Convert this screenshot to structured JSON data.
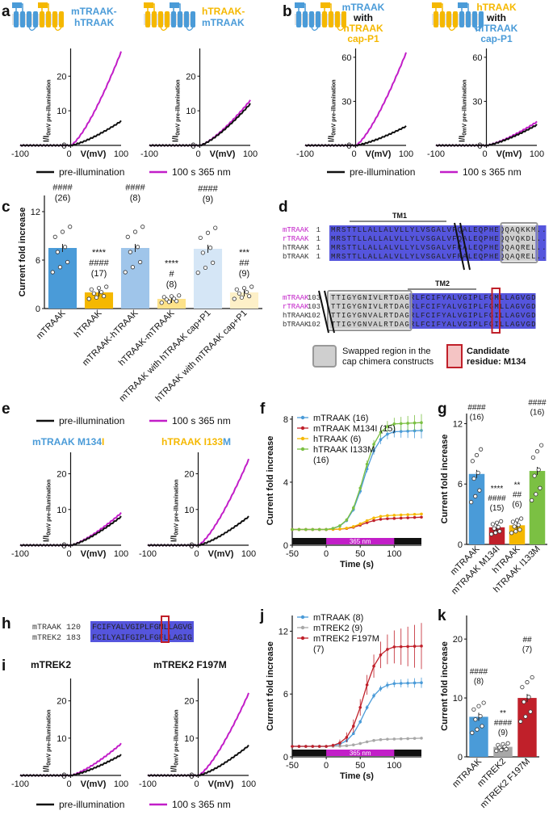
{
  "colors": {
    "mTRAAK": "#4a9bd8",
    "hTRAAK": "#f5b800",
    "illum": "#c21ec8",
    "black": "#111111",
    "mM134I": "#c0202a",
    "hI133M": "#7bc043",
    "mTREK2": "#a8a8a8",
    "F197M": "#c0202a",
    "align_blue": "#5555dd",
    "align_gray": "#cfcfcf",
    "candidate": "#c0202a",
    "magenta_text": "#c21ec8"
  },
  "panel_letters": {
    "a": "a",
    "b": "b",
    "c": "c",
    "d": "d",
    "e": "e",
    "f": "f",
    "g": "g",
    "h": "h",
    "i": "i",
    "j": "j",
    "k": "k"
  },
  "iv": {
    "ylabel_main": "I/I",
    "ylabel_sub": "0mV pre-illumination",
    "xlabel": "V(mV)",
    "xticks": [
      "-100",
      "0",
      "100"
    ],
    "ab_legend": {
      "pre": "pre-illumination",
      "uv": "100 s 365 nm"
    },
    "e_legend": {
      "pre": "pre-illumination",
      "uv": "100 s 365 nm"
    },
    "i_legend": {
      "pre": "pre-illumination",
      "uv": "100 s 365 nm"
    },
    "a1": {
      "title_l1": "mTRAAK-",
      "title_l2": "hTRAAK",
      "yticks": [
        "0",
        "10",
        "20"
      ],
      "ymax": 28,
      "pre_end": 7,
      "uv_end": 27
    },
    "a2": {
      "title_l1": "hTRAAK-",
      "title_l2": "mTRAAK",
      "yticks": [
        "0",
        "10",
        "20"
      ],
      "ymax": 28,
      "pre_end": 12,
      "uv_end": 13
    },
    "b1": {
      "title_l1": "mTRAAK",
      "title_l2": "with",
      "title_l3": "hTRAAK",
      "title_l4": "cap-P1",
      "yticks": [
        "0",
        "30",
        "60"
      ],
      "ymax": 66,
      "pre_end": 13,
      "uv_end": 63
    },
    "b2": {
      "title_l1": "hTRAAK",
      "title_l2": "with",
      "title_l3": "mTRAAK",
      "title_l4": "cap-P1",
      "yticks": [
        "0",
        "30",
        "60"
      ],
      "ymax": 66,
      "pre_end": 14,
      "uv_end": 16
    },
    "e1": {
      "title_a": "mTRAAK M134",
      "title_b": "I",
      "yticks": [
        "0",
        "10",
        "20"
      ],
      "ymax": 26,
      "pre_end": 8,
      "uv_end": 9
    },
    "e2": {
      "title_a": "hTRAAK I133",
      "title_b": "M",
      "yticks": [
        "0",
        "10",
        "20"
      ],
      "ymax": 26,
      "pre_end": 8,
      "uv_end": 24
    },
    "i1": {
      "title": "mTREK2",
      "yticks": [
        "0",
        "10",
        "20"
      ],
      "ymax": 26,
      "pre_end": 5.5,
      "uv_end": 8.5
    },
    "i2": {
      "title": "mTREK2 F197M",
      "yticks": [
        "0",
        "10",
        "20"
      ],
      "ymax": 26,
      "pre_end": 8,
      "uv_end": 22
    }
  },
  "panel_c": {
    "ylabel": "Current fold increase",
    "yticks": [
      "0",
      "6",
      "12"
    ],
    "ymax": 14,
    "bars": [
      {
        "label": "mTRAAK",
        "value": 7.5,
        "color": "#4a9bd8",
        "ann": [
          "####",
          "(26)"
        ]
      },
      {
        "label": "hTRAAK",
        "value": 2.0,
        "color": "#f5b800",
        "ann": [
          "****",
          "####",
          "(17)"
        ]
      },
      {
        "label": "mTRAAK-hTRAAK",
        "value": 7.5,
        "color": "#9fc5ea",
        "ann": [
          "####",
          "(8)"
        ]
      },
      {
        "label": "hTRAAK-mTRAAK",
        "value": 1.2,
        "color": "#fde28a",
        "ann": [
          "****",
          "#",
          "(8)"
        ]
      },
      {
        "label": "mTRAAK with hTRAAK cap+P1",
        "value": 7.4,
        "color": "#d5e6f6",
        "ann": [
          "####",
          "(9)"
        ]
      },
      {
        "label": "hTRAAK with mTRAAK cap+P1",
        "value": 2.0,
        "color": "#fdf0c8",
        "ann": [
          "***",
          "##",
          "(9)"
        ]
      }
    ]
  },
  "panel_d": {
    "tm1": "TM1",
    "tm2": "TM2",
    "block1": [
      {
        "name": "mTRAAK",
        "num": "1",
        "seq": "MRSTTLLALLALVLLYLVSGALVFQALEQPHEQQAQKKM..",
        "magenta": true
      },
      {
        "name": "rTRAAK",
        "num": "1",
        "seq": "MRSTTLLALLALVLLYLVSGALVFQALEQPHEQQVQKDL..",
        "magenta": true
      },
      {
        "name": "hTRAAK",
        "num": "1",
        "seq": "MRSTTLLALLALVLLYLVSGALVFRALEQPHEQQAQREL..",
        "magenta": false
      },
      {
        "name": "bTRAAK",
        "num": "1",
        "seq": "MRSTTLLALLALVLLYLVSGALVFRALEQPHEQQAQREL..",
        "magenta": false
      }
    ],
    "block2": [
      {
        "name": "mTRAAK",
        "num": "103",
        "seq": "TTIGYGNIVLRTDAGRLFCIFYALVGIPLFGMLLAGVGD",
        "magenta": true
      },
      {
        "name": "rTRAAK",
        "num": "103",
        "seq": "TTIGYGNIVLRTDAGRLFCIFYALVGIPLFGMLLAGVGD",
        "magenta": true
      },
      {
        "name": "hTRAAK",
        "num": "102",
        "seq": "TTIGYGNVALRTDAGRLFCIFYALVGIPLFGILLAGVGD",
        "magenta": false
      },
      {
        "name": "bTRAAK",
        "num": "102",
        "seq": "TTIGYGNVALRTDAGRLFCIFYALVGIPLFGILLAGVGD",
        "magenta": false
      }
    ],
    "legend_swap_l1": "Swapped region in the",
    "legend_swap_l2": "cap chimera constructs",
    "legend_cand_l1": "Candidate",
    "legend_cand_l2": "residue: M134"
  },
  "panel_f": {
    "ylabel": "Current fold increase",
    "xlabel": "Time (s)",
    "xticks": [
      "-50",
      "0",
      "50",
      "100"
    ],
    "yticks": [
      "0",
      "4",
      "8"
    ],
    "xlim": [
      -50,
      140
    ],
    "ylim": [
      0,
      8.2
    ],
    "stim_label": "365 nm",
    "series": [
      {
        "name": "mTRAAK (16)",
        "color": "#4a9bd8",
        "final": 7.2
      },
      {
        "name": "mTRAAK M134I (15)",
        "color": "#c0202a",
        "final": 1.7
      },
      {
        "name": "hTRAAK (6)",
        "color": "#f5b800",
        "final": 1.9
      },
      {
        "name": "hTRAAK I133M",
        "name2": "(16)",
        "color": "#7bc043",
        "final": 7.7
      }
    ]
  },
  "panel_g": {
    "ylabel": "Current fold increase",
    "yticks": [
      "0",
      "6",
      "12"
    ],
    "ymax": 13,
    "bars": [
      {
        "label": "mTRAAK",
        "value": 7.0,
        "color": "#4a9bd8",
        "ann": [
          "####",
          "(16)"
        ]
      },
      {
        "label": "mTRAAK M134I",
        "value": 1.7,
        "color": "#c0202a",
        "ann": [
          "****",
          "####",
          "(15)"
        ]
      },
      {
        "label": "hTRAAK",
        "value": 1.9,
        "color": "#f5b800",
        "ann": [
          "**",
          "##",
          "(6)"
        ]
      },
      {
        "label": "hTRAAK I133M",
        "value": 7.3,
        "color": "#7bc043",
        "ann": [
          "####",
          "(16)"
        ]
      }
    ]
  },
  "panel_h": {
    "rows": [
      {
        "name": "mTRAAK 120",
        "seq": "FCIFYALVGIPLFGMLLAGVG"
      },
      {
        "name": "mTREK2 183",
        "seq": "FCILYAIFGIPLFGFLLAGIG"
      }
    ]
  },
  "panel_j": {
    "ylabel": "Current fold increase",
    "xlabel": "Time (s)",
    "xticks": [
      "-50",
      "0",
      "50",
      "100"
    ],
    "yticks": [
      "0",
      "6",
      "12"
    ],
    "xlim": [
      -50,
      140
    ],
    "ylim": [
      0,
      13.5
    ],
    "stim_label": "365 nm",
    "series": [
      {
        "name": "mTRAAK (8)",
        "color": "#4a9bd8",
        "final": 7.0
      },
      {
        "name": "mTREK2 (9)",
        "color": "#a8a8a8",
        "final": 1.7
      },
      {
        "name": "mTREK2 F197M",
        "name2": "(7)",
        "color": "#c0202a",
        "final": 10.5
      }
    ]
  },
  "panel_k": {
    "ylabel": "Current fold increase",
    "yticks": [
      "0",
      "10",
      "20"
    ],
    "ymax": 24,
    "bars": [
      {
        "label": "mTRAAK",
        "value": 6.8,
        "color": "#4a9bd8",
        "ann": [
          "####",
          "(8)"
        ]
      },
      {
        "label": "mTREK2",
        "value": 1.7,
        "color": "#a8a8a8",
        "ann": [
          "**",
          "####",
          "(9)"
        ]
      },
      {
        "label": "mTREK2 F197M",
        "value": 10.0,
        "color": "#c0202a",
        "ann": [
          "##",
          "(7)"
        ]
      }
    ]
  }
}
